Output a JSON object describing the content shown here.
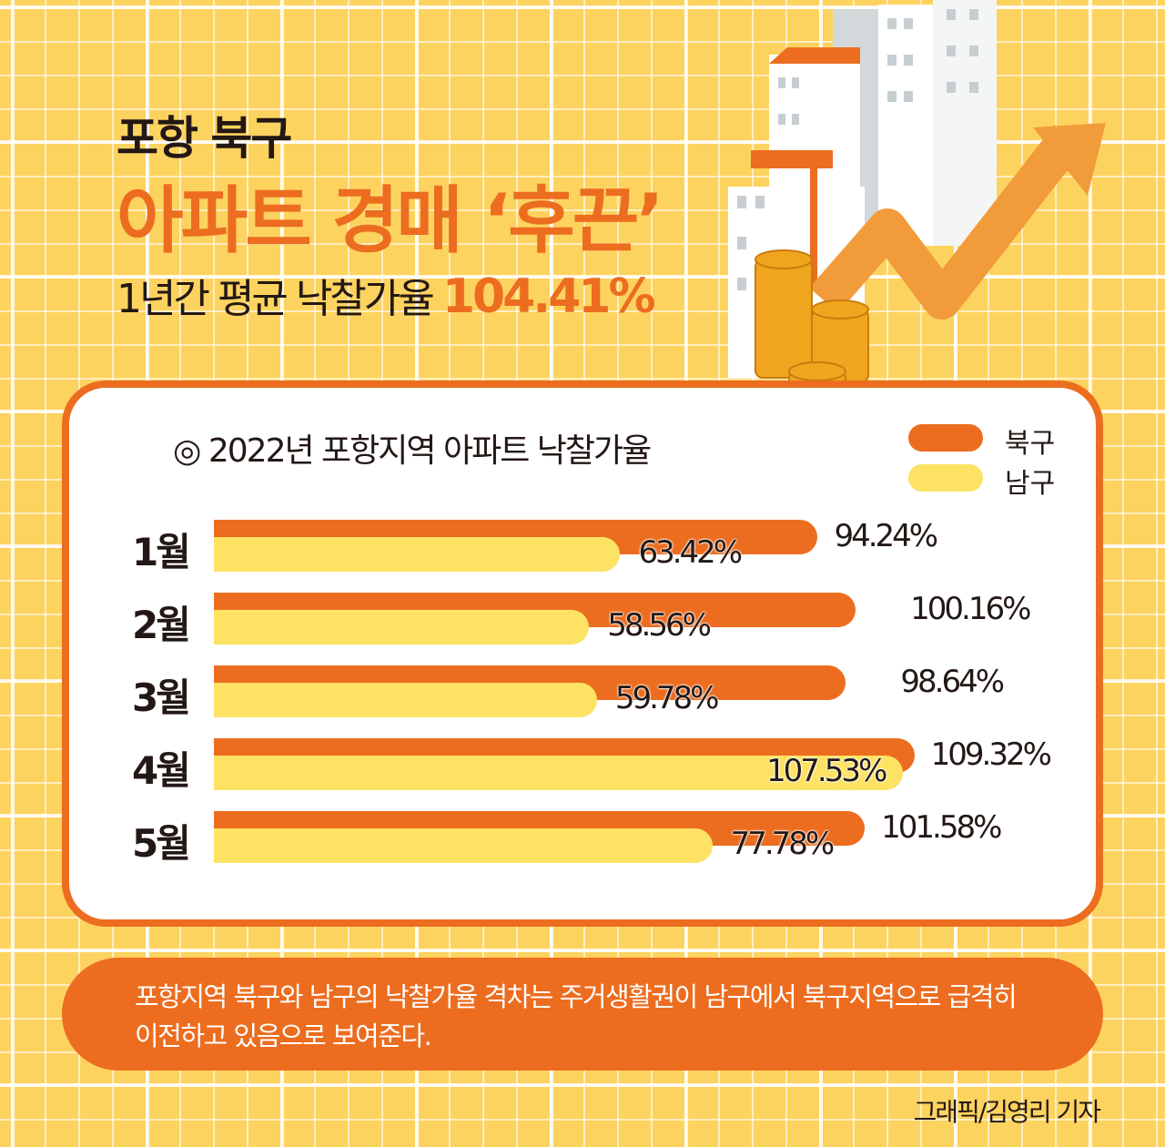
{
  "header": {
    "line1": "포항 북구",
    "line2": "아파트 경매 ‘후끈’",
    "line3_prefix": "1년간 평균 낙찰가율",
    "line3_value": "104.41%"
  },
  "colors": {
    "bukgu": "#ec6d20",
    "namgu": "#fde263",
    "background": "#fdd35f"
  },
  "chart_data": {
    "type": "bar",
    "orientation": "horizontal",
    "title": "◎ 2022년 포항지역 아파트 낙찰가율",
    "categories": [
      "1월",
      "2월",
      "3월",
      "4월",
      "5월"
    ],
    "series": [
      {
        "name": "북구",
        "values": [
          94.24,
          100.16,
          98.64,
          109.32,
          101.58
        ],
        "labels": [
          "94.24%",
          "100.16%",
          "98.64%",
          "109.32%",
          "101.58%"
        ]
      },
      {
        "name": "남구",
        "values": [
          63.42,
          58.56,
          59.78,
          107.53,
          77.78
        ],
        "labels": [
          "63.42%",
          "58.56%",
          "59.78%",
          "107.53%",
          "77.78%"
        ]
      }
    ],
    "legend": "top-right",
    "grid": false
  },
  "note": {
    "text": "포항지역 북구와 남구의 낙찰가율 격차는 주거생활권이 남구에서 북구지역으로 급격히 이전하고 있음으로 보여준다."
  },
  "credit": "그래픽/김영리 기자",
  "illustration": {
    "icons": [
      "buildings-icon",
      "coin-stack-icon",
      "rising-arrow-icon"
    ]
  }
}
